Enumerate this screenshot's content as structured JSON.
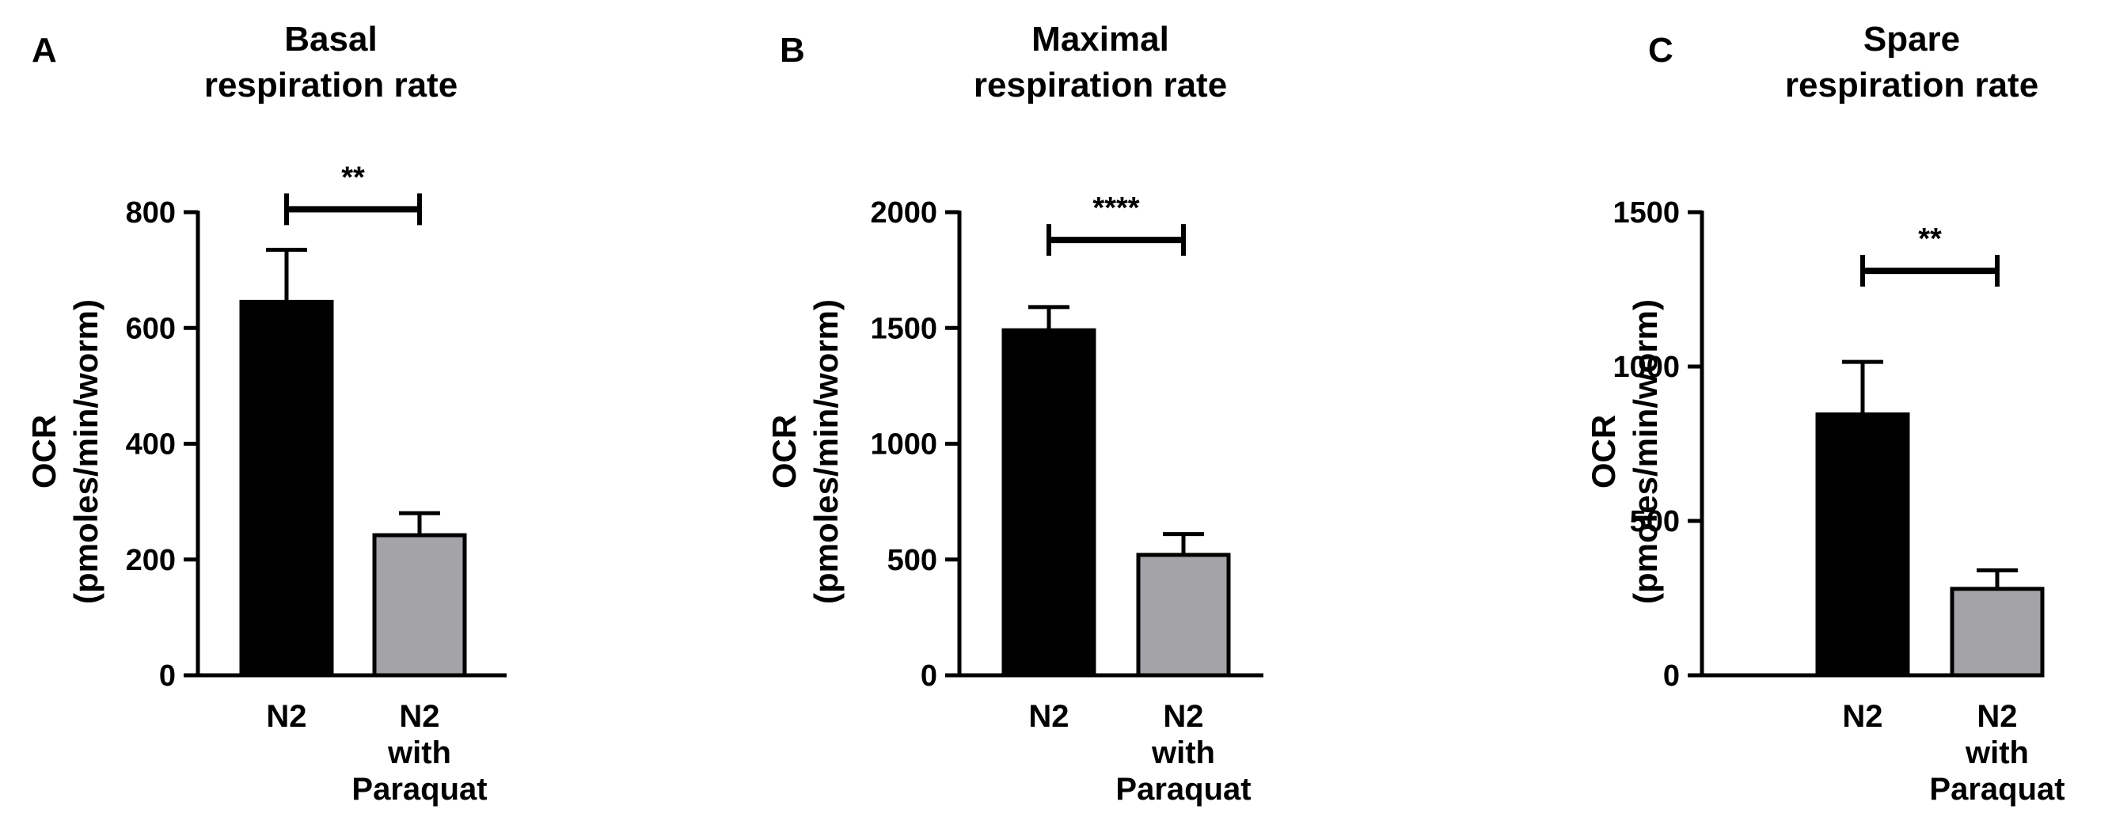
{
  "chart_data": [
    {
      "panel": "A",
      "type": "bar",
      "title": [
        "Basal",
        "respiration rate"
      ],
      "ylabel": [
        "OCR",
        "(pmoles/min/worm)"
      ],
      "categories": [
        [
          "N2"
        ],
        [
          "N2",
          "with",
          "Paraquat"
        ]
      ],
      "values": [
        645,
        242
      ],
      "errors": [
        90,
        38
      ],
      "ylim": [
        0,
        800
      ],
      "yticks": [
        0,
        200,
        400,
        600,
        800
      ],
      "bar_colors": [
        "#000000",
        "#a3a3a8"
      ],
      "significance": {
        "label": "**",
        "y": 805
      }
    },
    {
      "panel": "B",
      "type": "bar",
      "title": [
        "Maximal",
        "respiration rate"
      ],
      "ylabel": [
        "OCR",
        "(pmoles/min/worm)"
      ],
      "categories": [
        [
          "N2"
        ],
        [
          "N2",
          "with",
          "Paraquat"
        ]
      ],
      "values": [
        1490,
        520
      ],
      "errors": [
        100,
        90
      ],
      "ylim": [
        0,
        2000
      ],
      "yticks": [
        0,
        500,
        1000,
        1500,
        2000
      ],
      "bar_colors": [
        "#000000",
        "#a3a3a8"
      ],
      "significance": {
        "label": "****",
        "y": 1880
      }
    },
    {
      "panel": "C",
      "type": "bar",
      "title": [
        "Spare",
        "respiration rate"
      ],
      "ylabel": [
        "OCR",
        "(pmoles/min/worm)"
      ],
      "categories": [
        [
          "N2"
        ],
        [
          "N2",
          "with",
          "Paraquat"
        ]
      ],
      "values": [
        845,
        280
      ],
      "errors": [
        170,
        60
      ],
      "ylim": [
        0,
        1500
      ],
      "yticks": [
        0,
        500,
        1000,
        1500
      ],
      "bar_colors": [
        "#000000",
        "#a3a3a8"
      ],
      "significance": {
        "label": "**",
        "y": 1310
      }
    }
  ]
}
